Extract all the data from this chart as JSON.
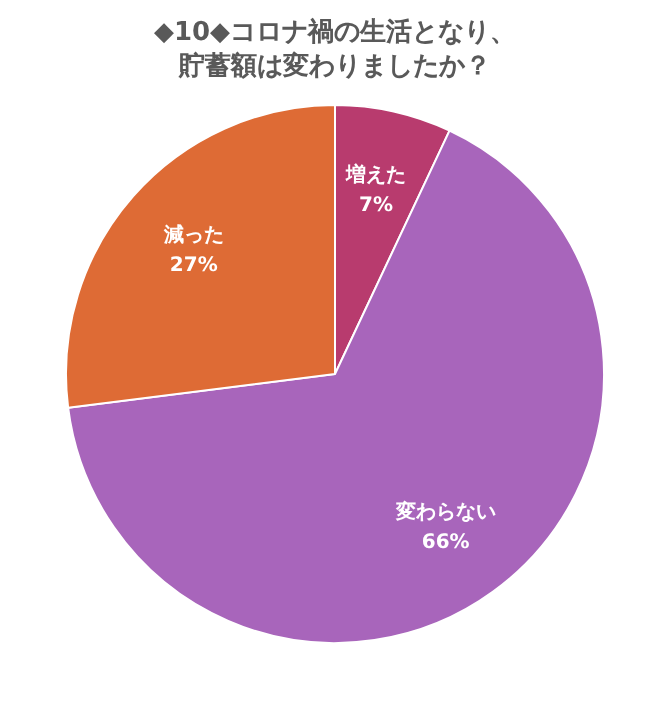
{
  "chart_data": {
    "type": "pie",
    "title": "◆10◆コロナ禍の生活となり、貯蓄額は変わりましたか？",
    "categories": [
      "増えた",
      "変わらない",
      "減った"
    ],
    "values": [
      7,
      66,
      27
    ],
    "value_labels": [
      "7%",
      "66%",
      "27%"
    ],
    "colors": [
      "#b83b6e",
      "#a865bb",
      "#de6b35"
    ],
    "legend": false
  }
}
